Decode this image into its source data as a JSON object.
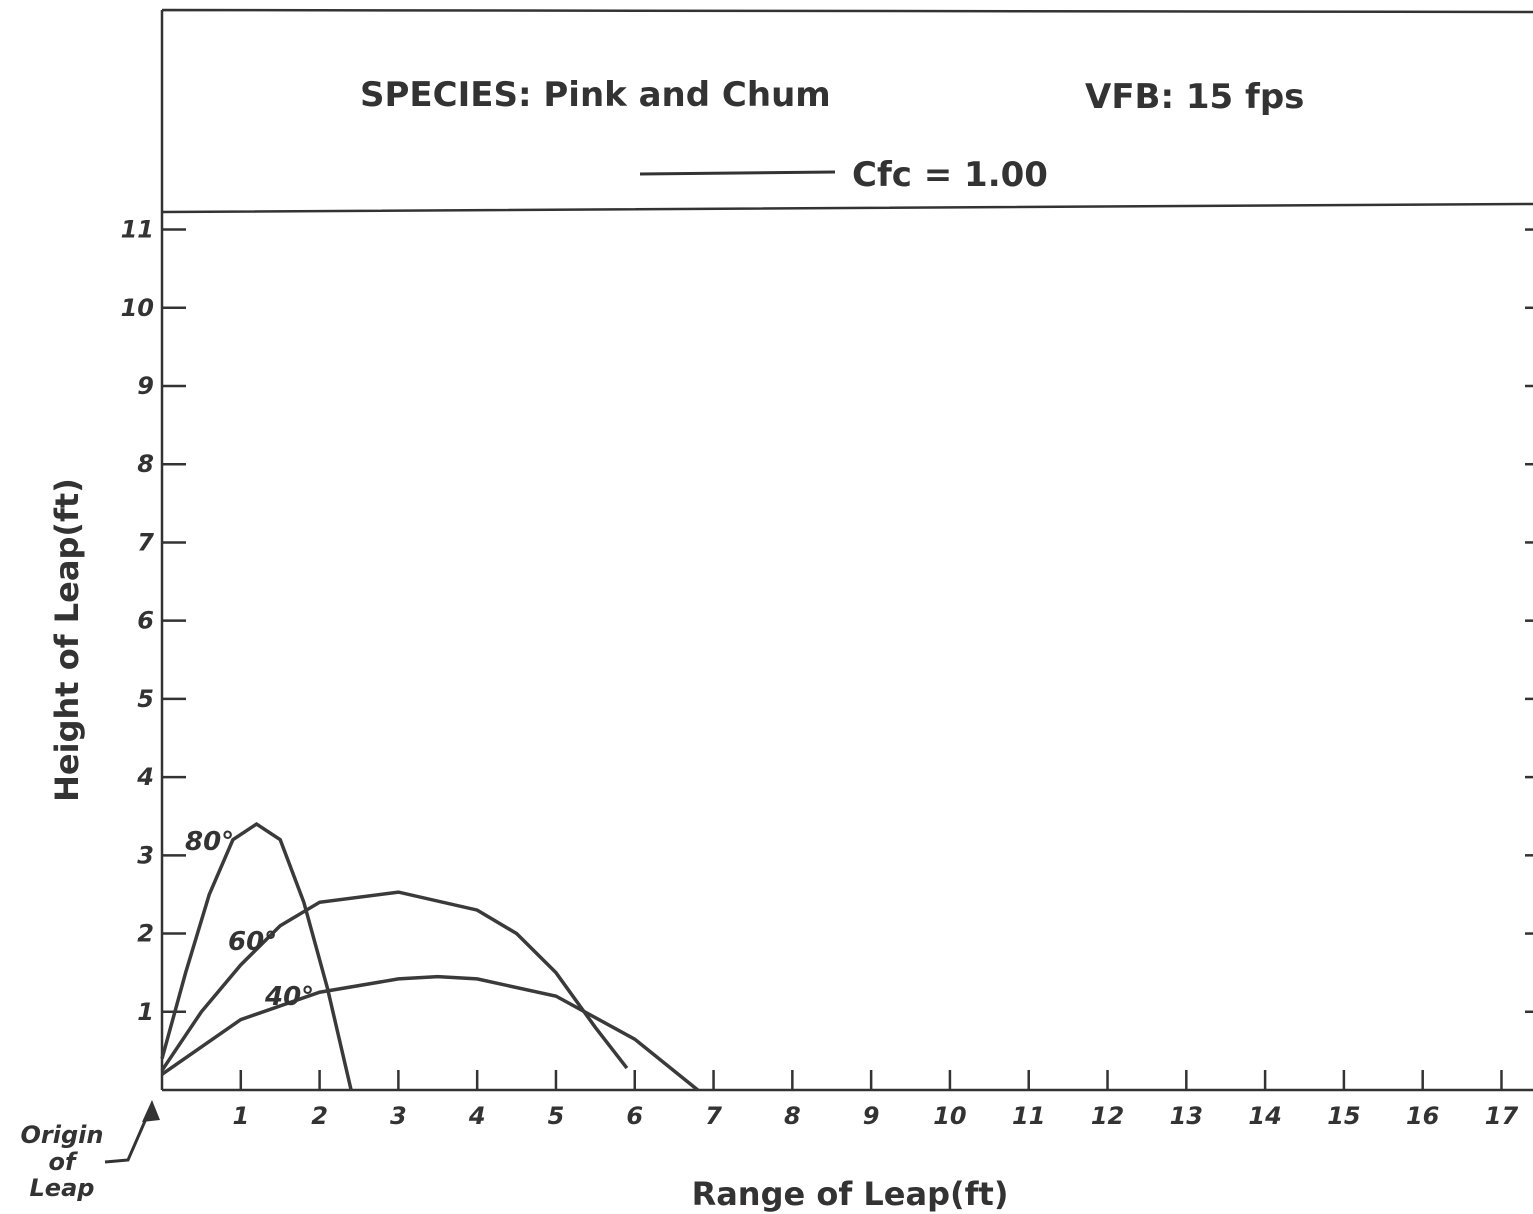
{
  "chart_data": {
    "type": "line",
    "title": "SPECIES: Pink and Chum",
    "subtitle": "VFB: 15 fps",
    "legend_label": "Cfc = 1.00",
    "x_label": "Range of Leap(ft)",
    "y_label": "Height of Leap(ft)",
    "origin_note": [
      "Origin",
      "of",
      "Leap"
    ],
    "xlim": [
      0,
      17.4
    ],
    "ylim": [
      0,
      11.25
    ],
    "xticks": [
      1,
      2,
      3,
      4,
      5,
      6,
      7,
      8,
      9,
      10,
      11,
      12,
      13,
      14,
      15,
      16,
      17
    ],
    "yticks": [
      1,
      2,
      3,
      4,
      5,
      6,
      7,
      8,
      9,
      10,
      11
    ],
    "series": [
      {
        "name": "80°",
        "color": "#3a3a3a",
        "x": [
          0,
          0.3,
          0.6,
          0.9,
          1.2,
          1.5,
          1.8,
          2.1,
          2.4
        ],
        "values": [
          0.4,
          1.5,
          2.5,
          3.2,
          3.4,
          3.2,
          2.4,
          1.3,
          0
        ]
      },
      {
        "name": "60°",
        "color": "#3a3a3a",
        "x": [
          0,
          0.5,
          1,
          1.5,
          2,
          3,
          4,
          4.5,
          5,
          5.5,
          5.9
        ],
        "values": [
          0.25,
          1.0,
          1.6,
          2.1,
          2.4,
          2.53,
          2.3,
          2.0,
          1.5,
          0.8,
          0.28
        ]
      },
      {
        "name": "40°",
        "color": "#3a3a3a",
        "x": [
          0,
          1,
          2,
          3,
          3.5,
          4,
          5,
          6,
          6.8
        ],
        "values": [
          0.2,
          0.9,
          1.25,
          1.42,
          1.45,
          1.42,
          1.2,
          0.65,
          0
        ]
      }
    ]
  }
}
